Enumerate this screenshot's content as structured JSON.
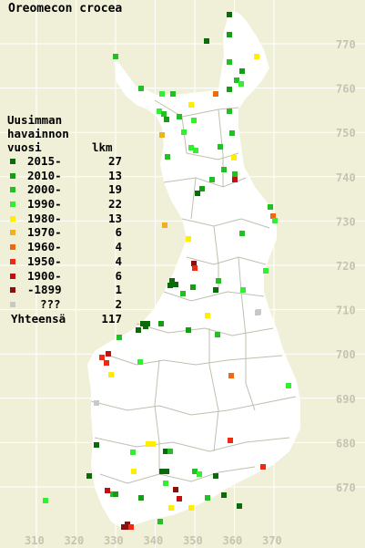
{
  "title": "Oreomecon crocea",
  "legend": {
    "heading": [
      "Uusimman",
      "havainnon",
      "vuosi"
    ],
    "count_heading": "lkm",
    "rows": [
      {
        "label": "2015-",
        "count": "27",
        "color": "#0b6b0b"
      },
      {
        "label": "2010-",
        "count": "13",
        "color": "#12a012"
      },
      {
        "label": "2000-",
        "count": "19",
        "color": "#22c022"
      },
      {
        "label": "1990-",
        "count": "22",
        "color": "#33ee33"
      },
      {
        "label": "1980-",
        "count": "13",
        "color": "#ffee00"
      },
      {
        "label": "1970-",
        "count": "6",
        "color": "#f0b020"
      },
      {
        "label": "1960-",
        "count": "4",
        "color": "#ee6a10"
      },
      {
        "label": "1950-",
        "count": "4",
        "color": "#ee2a10"
      },
      {
        "label": "1900-",
        "count": "6",
        "color": "#c01010"
      },
      {
        "label": "-1899",
        "count": "1",
        "color": "#8a1010"
      },
      {
        "label": "???",
        "count": "2",
        "color": "#c8c8c8"
      }
    ],
    "total_label": "Yhteensä",
    "total_count": "117"
  },
  "map": {
    "x_ticks": [
      "310",
      "320",
      "330",
      "340",
      "350",
      "360",
      "370"
    ],
    "y_ticks": [
      "770",
      "760",
      "750",
      "740",
      "730",
      "720",
      "710",
      "700",
      "690",
      "680",
      "670"
    ]
  }
}
